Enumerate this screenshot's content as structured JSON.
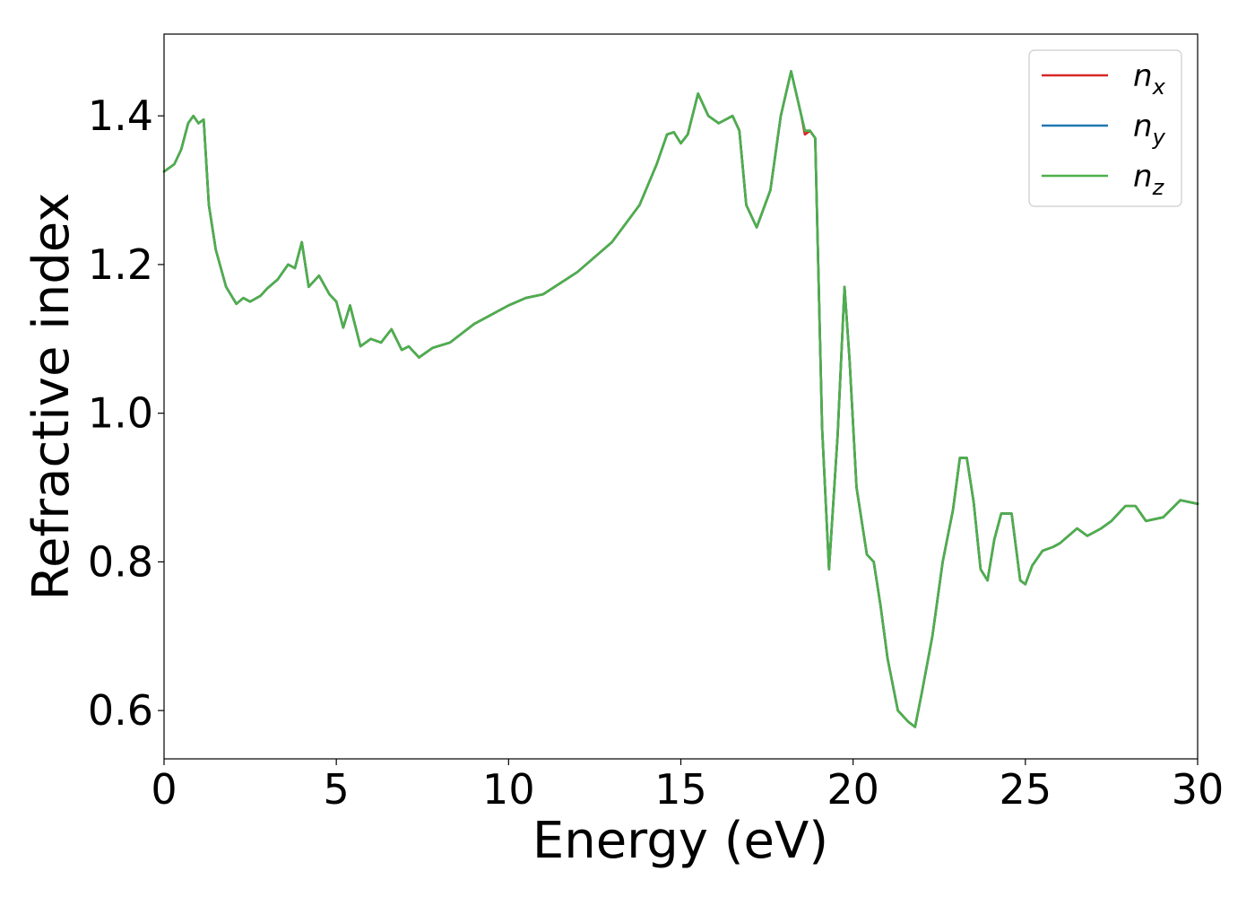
{
  "chart_data": {
    "type": "line",
    "xlabel": "Energy (eV)",
    "ylabel": "Refractive index",
    "xlim": [
      0,
      30
    ],
    "ylim": [
      0.535,
      1.51
    ],
    "xticks": [
      0,
      5,
      10,
      15,
      20,
      25,
      30
    ],
    "xtick_labels": [
      "0",
      "5",
      "10",
      "15",
      "20",
      "25",
      "30"
    ],
    "yticks": [
      0.6,
      0.8,
      1.0,
      1.2,
      1.4
    ],
    "ytick_labels": [
      "0.6",
      "0.8",
      "1.0",
      "1.2",
      "1.4"
    ],
    "grid": false,
    "legend_position": "top-right",
    "x": [
      0,
      0.3,
      0.5,
      0.7,
      0.85,
      1.0,
      1.15,
      1.3,
      1.5,
      1.8,
      2.1,
      2.3,
      2.5,
      2.8,
      3.0,
      3.3,
      3.6,
      3.8,
      4.0,
      4.2,
      4.5,
      4.8,
      5.0,
      5.2,
      5.4,
      5.7,
      6.0,
      6.3,
      6.6,
      6.9,
      7.1,
      7.4,
      7.8,
      8.3,
      9.0,
      10.0,
      10.5,
      11.0,
      12.0,
      13.0,
      13.8,
      14.3,
      14.6,
      14.8,
      15.0,
      15.2,
      15.5,
      15.8,
      16.1,
      16.5,
      16.7,
      16.9,
      17.2,
      17.6,
      17.9,
      18.2,
      18.5,
      18.6,
      18.75,
      18.9,
      19.1,
      19.3,
      19.55,
      19.75,
      19.9,
      20.1,
      20.4,
      20.6,
      20.8,
      21.0,
      21.3,
      21.6,
      21.8,
      22.0,
      22.3,
      22.6,
      22.9,
      23.1,
      23.3,
      23.5,
      23.7,
      23.9,
      24.1,
      24.3,
      24.6,
      24.85,
      25.0,
      25.2,
      25.5,
      25.8,
      26.0,
      26.5,
      26.8,
      27.2,
      27.5,
      27.9,
      28.2,
      28.5,
      29.0,
      29.5,
      30.0
    ],
    "series": [
      {
        "name": "n_x",
        "color": "#d62728",
        "values": [
          1.325,
          1.335,
          1.355,
          1.39,
          1.4,
          1.39,
          1.395,
          1.28,
          1.22,
          1.17,
          1.147,
          1.155,
          1.15,
          1.158,
          1.168,
          1.18,
          1.2,
          1.195,
          1.23,
          1.17,
          1.185,
          1.16,
          1.15,
          1.115,
          1.145,
          1.09,
          1.1,
          1.095,
          1.113,
          1.085,
          1.09,
          1.075,
          1.088,
          1.095,
          1.12,
          1.145,
          1.155,
          1.16,
          1.19,
          1.23,
          1.28,
          1.335,
          1.375,
          1.378,
          1.363,
          1.375,
          1.43,
          1.4,
          1.39,
          1.4,
          1.38,
          1.28,
          1.25,
          1.3,
          1.4,
          1.46,
          1.4,
          1.375,
          1.38,
          1.37,
          0.98,
          0.79,
          0.97,
          1.17,
          1.07,
          0.9,
          0.81,
          0.8,
          0.74,
          0.67,
          0.6,
          0.585,
          0.578,
          0.625,
          0.7,
          0.8,
          0.87,
          0.94,
          0.94,
          0.88,
          0.79,
          0.775,
          0.83,
          0.865,
          0.865,
          0.775,
          0.77,
          0.795,
          0.815,
          0.82,
          0.825,
          0.845,
          0.835,
          0.845,
          0.855,
          0.875,
          0.875,
          0.855,
          0.86,
          0.883,
          0.878
        ]
      },
      {
        "name": "n_y",
        "color": "#1f77b4",
        "values": [
          1.325,
          1.335,
          1.355,
          1.39,
          1.4,
          1.39,
          1.395,
          1.28,
          1.22,
          1.17,
          1.147,
          1.155,
          1.15,
          1.158,
          1.168,
          1.18,
          1.2,
          1.195,
          1.23,
          1.17,
          1.185,
          1.16,
          1.15,
          1.115,
          1.145,
          1.09,
          1.1,
          1.095,
          1.113,
          1.085,
          1.09,
          1.075,
          1.088,
          1.095,
          1.12,
          1.145,
          1.155,
          1.16,
          1.19,
          1.23,
          1.28,
          1.335,
          1.375,
          1.378,
          1.363,
          1.375,
          1.43,
          1.4,
          1.39,
          1.4,
          1.38,
          1.28,
          1.25,
          1.3,
          1.4,
          1.46,
          1.4,
          1.38,
          1.38,
          1.37,
          0.98,
          0.79,
          0.97,
          1.17,
          1.07,
          0.9,
          0.81,
          0.8,
          0.74,
          0.67,
          0.6,
          0.585,
          0.578,
          0.625,
          0.7,
          0.8,
          0.87,
          0.94,
          0.94,
          0.88,
          0.79,
          0.775,
          0.83,
          0.865,
          0.865,
          0.775,
          0.77,
          0.795,
          0.815,
          0.82,
          0.825,
          0.845,
          0.835,
          0.845,
          0.855,
          0.875,
          0.875,
          0.855,
          0.86,
          0.883,
          0.878
        ]
      },
      {
        "name": "n_z",
        "color": "#4daf4a",
        "values": [
          1.325,
          1.335,
          1.355,
          1.39,
          1.4,
          1.39,
          1.395,
          1.28,
          1.22,
          1.17,
          1.147,
          1.155,
          1.15,
          1.158,
          1.168,
          1.18,
          1.2,
          1.195,
          1.23,
          1.17,
          1.185,
          1.16,
          1.15,
          1.115,
          1.145,
          1.09,
          1.1,
          1.095,
          1.113,
          1.085,
          1.09,
          1.075,
          1.088,
          1.095,
          1.12,
          1.145,
          1.155,
          1.16,
          1.19,
          1.23,
          1.28,
          1.335,
          1.375,
          1.378,
          1.363,
          1.375,
          1.43,
          1.4,
          1.39,
          1.4,
          1.38,
          1.28,
          1.25,
          1.3,
          1.4,
          1.46,
          1.4,
          1.38,
          1.38,
          1.37,
          0.98,
          0.79,
          0.97,
          1.17,
          1.07,
          0.9,
          0.81,
          0.8,
          0.74,
          0.67,
          0.6,
          0.585,
          0.578,
          0.625,
          0.7,
          0.8,
          0.87,
          0.94,
          0.94,
          0.88,
          0.79,
          0.775,
          0.83,
          0.865,
          0.865,
          0.775,
          0.77,
          0.795,
          0.815,
          0.82,
          0.825,
          0.845,
          0.835,
          0.845,
          0.855,
          0.875,
          0.875,
          0.855,
          0.86,
          0.883,
          0.878
        ]
      }
    ],
    "legend": [
      {
        "base": "n",
        "sub": "x",
        "color": "#d62728"
      },
      {
        "base": "n",
        "sub": "y",
        "color": "#1f77b4"
      },
      {
        "base": "n",
        "sub": "z",
        "color": "#4daf4a"
      }
    ]
  }
}
